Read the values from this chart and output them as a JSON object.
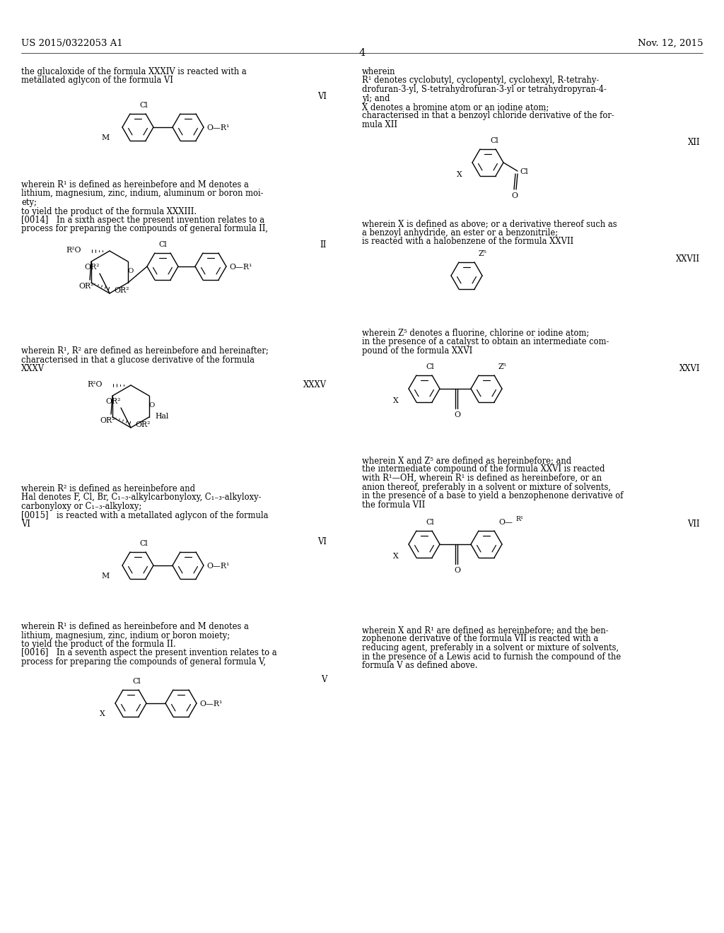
{
  "bg": "#ffffff",
  "header_left": "US 2015/0322053 A1",
  "header_right": "Nov. 12, 2015",
  "page_num": "4",
  "fs_body": 8.3,
  "fs_small": 7.8,
  "fs_header": 9.5
}
